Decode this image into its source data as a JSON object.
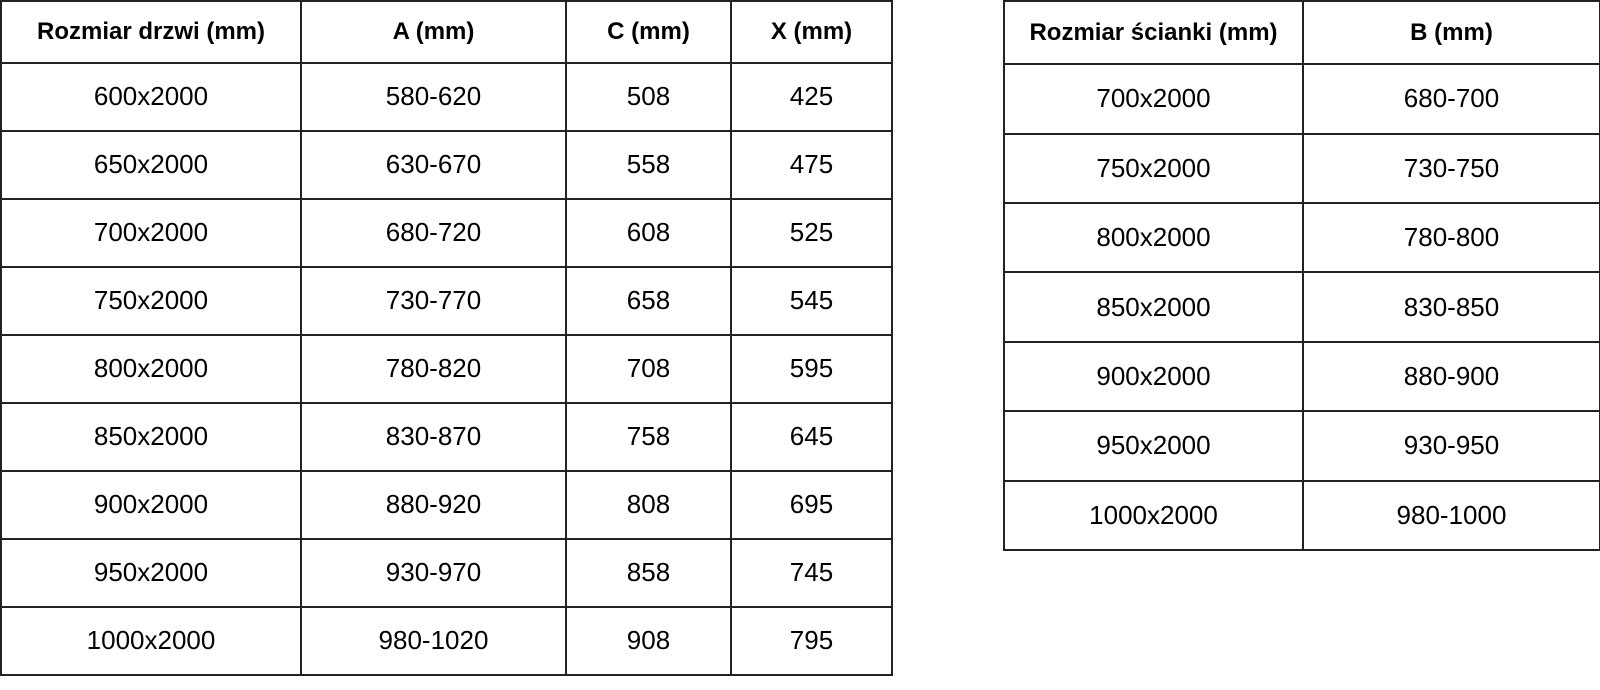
{
  "door_table": {
    "headers": [
      "Rozmiar drzwi (mm)",
      "A (mm)",
      "C (mm)",
      "X (mm)"
    ],
    "rows": [
      [
        "600x2000",
        "580-620",
        "508",
        "425"
      ],
      [
        "650x2000",
        "630-670",
        "558",
        "475"
      ],
      [
        "700x2000",
        "680-720",
        "608",
        "525"
      ],
      [
        "750x2000",
        "730-770",
        "658",
        "545"
      ],
      [
        "800x2000",
        "780-820",
        "708",
        "595"
      ],
      [
        "850x2000",
        "830-870",
        "758",
        "645"
      ],
      [
        "900x2000",
        "880-920",
        "808",
        "695"
      ],
      [
        "950x2000",
        "930-970",
        "858",
        "745"
      ],
      [
        "1000x2000",
        "980-1020",
        "908",
        "795"
      ]
    ]
  },
  "wall_table": {
    "headers": [
      "Rozmiar ścianki (mm)",
      "B (mm)"
    ],
    "rows": [
      [
        "700x2000",
        "680-700"
      ],
      [
        "750x2000",
        "730-750"
      ],
      [
        "800x2000",
        "780-800"
      ],
      [
        "850x2000",
        "830-850"
      ],
      [
        "900x2000",
        "880-900"
      ],
      [
        "950x2000",
        "930-950"
      ],
      [
        "1000x2000",
        "980-1000"
      ]
    ]
  }
}
